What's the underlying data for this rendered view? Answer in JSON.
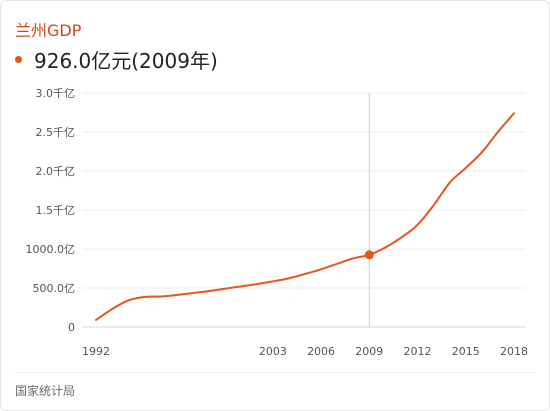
{
  "header": {
    "title": "兰州GDP",
    "current_value": "926.0亿元(2009年)",
    "accent": "#e5561d"
  },
  "footer": {
    "source": "国家统计局"
  },
  "chart_data": {
    "type": "line",
    "title": "兰州GDP",
    "xlabel": "",
    "ylabel": "",
    "x": [
      1992,
      1993,
      1994,
      1995,
      1996,
      1997,
      1998,
      1999,
      2000,
      2001,
      2002,
      2003,
      2004,
      2005,
      2006,
      2007,
      2008,
      2009,
      2010,
      2011,
      2012,
      2013,
      2014,
      2015,
      2016,
      2017,
      2018
    ],
    "series": [
      {
        "values": [
          90,
          230,
          340,
          385,
          390,
          410,
          435,
          460,
          490,
          520,
          550,
          585,
          625,
          680,
          740,
          810,
          880,
          926,
          1020,
          1150,
          1310,
          1560,
          1850,
          2040,
          2240,
          2500,
          2740
        ]
      }
    ],
    "xticks": [
      1992,
      2003,
      2006,
      2009,
      2012,
      2015,
      2018
    ],
    "yticks": [
      {
        "value": 0,
        "label": "0"
      },
      {
        "value": 500,
        "label": "500.0亿"
      },
      {
        "value": 1000,
        "label": "1000.0亿"
      },
      {
        "value": 1500,
        "label": "1.5千亿"
      },
      {
        "value": 2000,
        "label": "2.0千亿"
      },
      {
        "value": 2500,
        "label": "2.5千亿"
      },
      {
        "value": 3000,
        "label": "3.0千亿"
      }
    ],
    "ylim": [
      0,
      3000
    ],
    "highlight": {
      "x": 2009,
      "y": 926
    },
    "grid": true,
    "line_color": "#e5561d"
  }
}
